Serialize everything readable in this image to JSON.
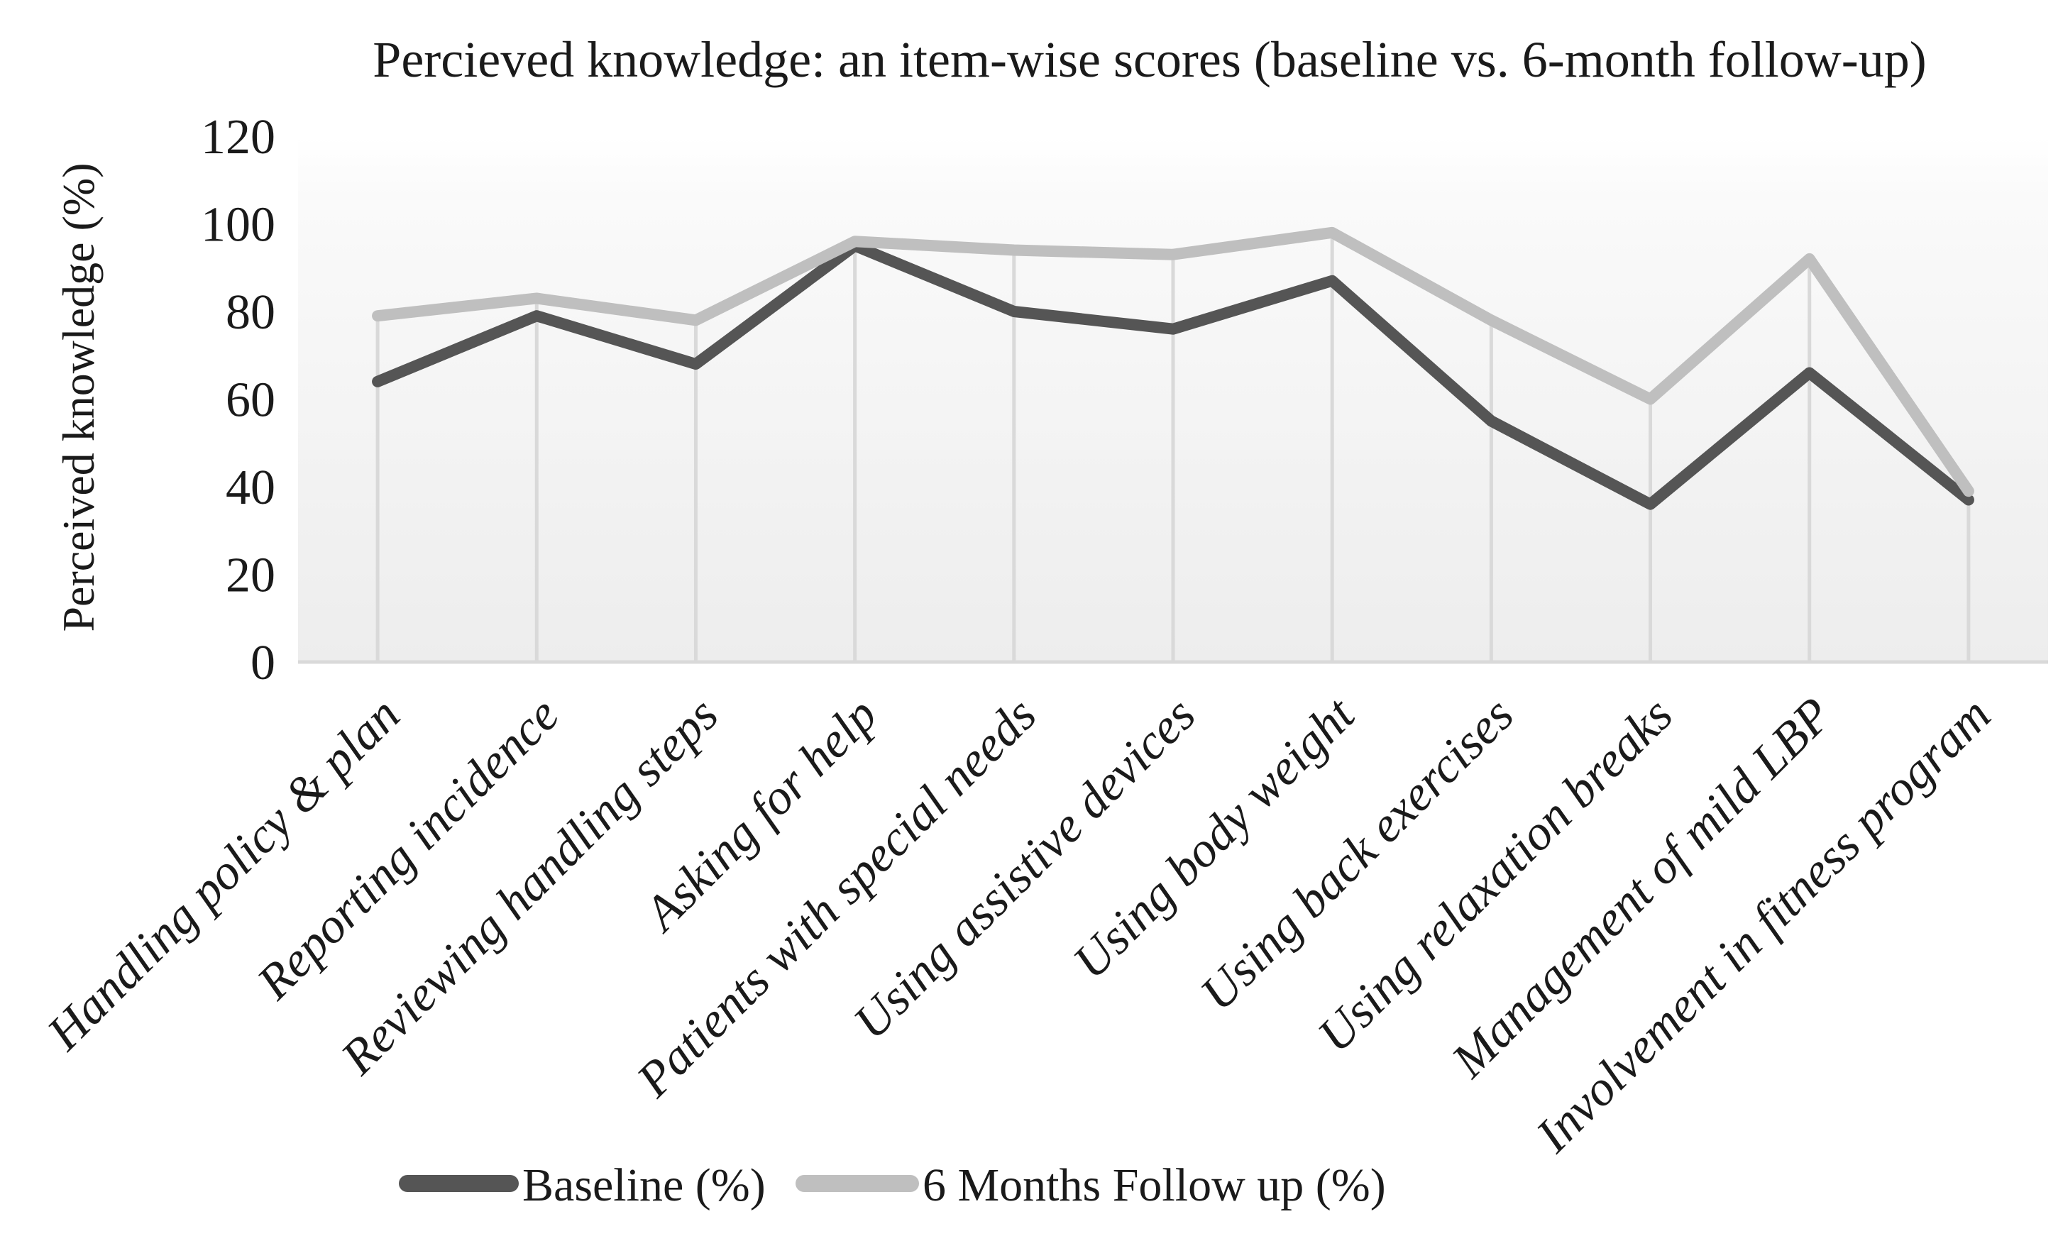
{
  "figure": {
    "title": "Percieved knowledge: an item-wise scores (baseline vs. 6-month follow-up)"
  },
  "y_axis": {
    "title": "Perceived knowledge (%)",
    "tick_labels": [
      "0",
      "20",
      "40",
      "60",
      "80",
      "100",
      "120"
    ]
  },
  "legend": {
    "position": "bottom",
    "items": [
      {
        "label": "Baseline (%)",
        "color": "#555555"
      },
      {
        "label": "6 Months Follow up (%)",
        "color": "#bfbfbf"
      }
    ]
  },
  "colors": {
    "baseline_line": "#555555",
    "followup_line": "#bfbfbf",
    "drop_line": "#d9d9d9",
    "axis_line": "#d9d9d9",
    "plot_fill_top": "#ffffff",
    "plot_fill_bottom": "#ededed",
    "text": "#1a1a1a"
  },
  "chart_data": {
    "type": "line",
    "title": "Percieved knowledge: an item-wise scores (baseline vs. 6-month follow-up)",
    "xlabel": "",
    "ylabel": "Perceived knowledge (%)",
    "ylim": [
      0,
      120
    ],
    "y_ticks": [
      0,
      20,
      40,
      60,
      80,
      100,
      120
    ],
    "grid": "vertical drop lines from follow-up points to x-axis",
    "legend_position": "bottom",
    "categories": [
      "Handling policy & plan",
      "Reporting incidence",
      "Reviewing handling steps",
      "Asking for help",
      "Patients with special needs",
      "Using assistive devices",
      "Using body weight",
      "Using back exercises",
      "Using relaxation breaks",
      "Management of mild LBP",
      "Involvement in fitness program"
    ],
    "series": [
      {
        "name": "Baseline (%)",
        "color": "#555555",
        "values": [
          64,
          79,
          68,
          95,
          80,
          76,
          87,
          55,
          36,
          66,
          37
        ]
      },
      {
        "name": "6 Months Follow up (%)",
        "color": "#bfbfbf",
        "values": [
          79,
          83,
          78,
          96,
          94,
          93,
          98,
          78,
          60,
          92,
          39
        ]
      }
    ]
  }
}
